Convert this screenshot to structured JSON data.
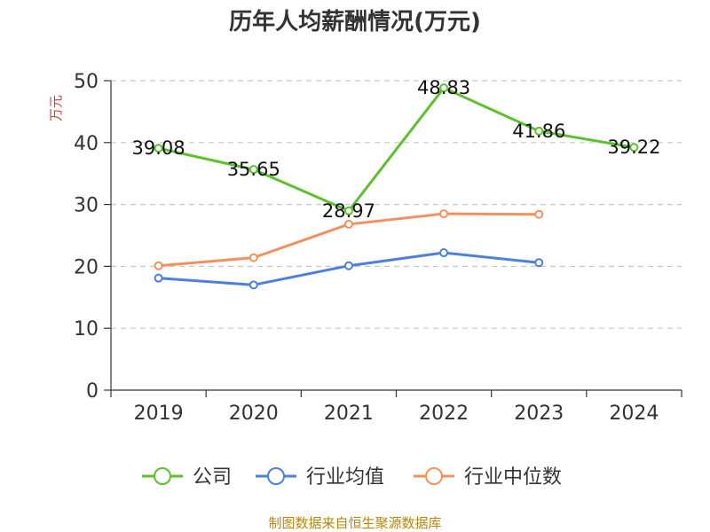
{
  "chart_data": {
    "type": "line",
    "title": "历年人均薪酬情况(万元)",
    "ylabel": "万元",
    "xlabel": "",
    "categories": [
      "2019",
      "2020",
      "2021",
      "2022",
      "2023",
      "2024"
    ],
    "ylim": [
      0,
      50
    ],
    "yticks": [
      0,
      10,
      20,
      30,
      40,
      50
    ],
    "grid": true,
    "legend_position": "bottom",
    "series": [
      {
        "name": "公司",
        "color": "#5bc12e",
        "values": [
          39.08,
          35.65,
          28.97,
          48.83,
          41.86,
          39.22
        ],
        "labels": [
          "39.08",
          "35.65",
          "28.97",
          "48.83",
          "41.86",
          "39.22"
        ]
      },
      {
        "name": "行业均值",
        "color": "#4d7fdc",
        "values": [
          18.1,
          17.0,
          20.1,
          22.2,
          20.6,
          null
        ]
      },
      {
        "name": "行业中位数",
        "color": "#f5905c",
        "values": [
          20.1,
          21.4,
          26.8,
          28.5,
          28.4,
          null
        ]
      }
    ]
  },
  "source": "制图数据来自恒生聚源数据库"
}
